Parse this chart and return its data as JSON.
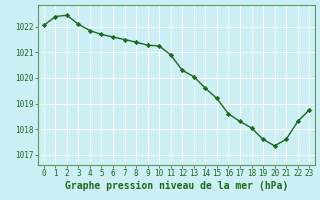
{
  "x": [
    0,
    1,
    2,
    3,
    4,
    5,
    6,
    7,
    8,
    9,
    10,
    11,
    12,
    13,
    14,
    15,
    16,
    17,
    18,
    19,
    20,
    21,
    22,
    23
  ],
  "y": [
    1022.05,
    1022.4,
    1022.45,
    1022.1,
    1021.85,
    1021.7,
    1021.6,
    1021.5,
    1021.4,
    1021.28,
    1021.25,
    1020.9,
    1020.3,
    1020.05,
    1019.6,
    1019.2,
    1018.6,
    1018.3,
    1018.05,
    1017.6,
    1017.35,
    1017.6,
    1018.3,
    1018.75
  ],
  "line_color": "#1a6b1a",
  "marker": "D",
  "marker_size": 2.2,
  "background_color": "#cceef5",
  "grid_color": "#ffffff",
  "tick_color": "#1a6b1a",
  "xlabel": "Graphe pression niveau de la mer (hPa)",
  "xlabel_fontsize": 7.0,
  "ylim": [
    1016.6,
    1022.85
  ],
  "yticks": [
    1017,
    1018,
    1019,
    1020,
    1021,
    1022
  ],
  "xticks": [
    0,
    1,
    2,
    3,
    4,
    5,
    6,
    7,
    8,
    9,
    10,
    11,
    12,
    13,
    14,
    15,
    16,
    17,
    18,
    19,
    20,
    21,
    22,
    23
  ],
  "tick_fontsize": 5.5,
  "line_width": 1.0,
  "spine_color": "#5a9a5a"
}
